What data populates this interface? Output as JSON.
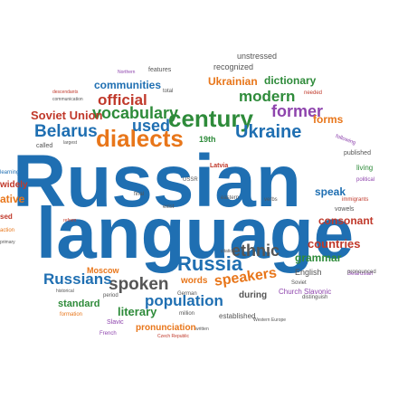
{
  "words": {
    "russian": "Russian",
    "language": "language",
    "century": "century",
    "dialects": "dialects",
    "vocabulary": "vocabulary",
    "ukraine": "Ukraine",
    "belarus": "Belarus",
    "used": "used",
    "official": "official",
    "modern": "modern",
    "former": "former",
    "forms": "forms",
    "dictionary": "dictionary",
    "ukrainian": "Ukrainian",
    "communities": "communities",
    "soviet_union": "Soviet Union",
    "russia": "Russia",
    "ethnic": "ethnic",
    "spoken": "spoken",
    "russians": "Russians",
    "speakers": "speakers",
    "population": "population",
    "literary": "literary",
    "countries": "countries",
    "grammar": "grammar",
    "speak": "speak",
    "consonant": "consonant",
    "standard": "standard",
    "pronunciation": "pronunciation",
    "moscow": "Moscow",
    "words": "words",
    "during": "during",
    "english": "English",
    "church_slavonic": "Church Slavonic",
    "established": "established",
    "unstressed": "unstressed",
    "recognized": "recognized",
    "features": "features",
    "19th": "19th",
    "vowels": "vowels",
    "published": "published",
    "living": "living",
    "native": "ative",
    "widely": "widely",
    "called": "called",
    "largest": "largest",
    "slavic": "Slavic",
    "formation": "formation",
    "million": "million",
    "german": "German",
    "period": "period",
    "french": "French",
    "descendants": "descendants",
    "following": "following",
    "immigrants": "immigrants",
    "latvia": "Latvia",
    "belarusian": "Belarusian",
    "soviet": "Soviet",
    "distinguish": "distinguish",
    "pronounced": "pronounced",
    "western_europe": "Western Europe",
    "citation": "citation",
    "total": "total",
    "northern": "Northern",
    "needed": "needed",
    "political": "political",
    "reform": "reform",
    "final": "final",
    "ussr": "USSR",
    "exist": "exist",
    "eastern": "eastern",
    "verbs": "verbs",
    "czech_republic": "Czech Republic",
    "learning": "learning",
    "historical": "historical",
    "primary": "primary",
    "action": "action",
    "communication": "communication",
    "lithuania": "Lithuania",
    "used_small": "used",
    "end": "end",
    "tone": "tone",
    "written": "written",
    "yet": "yet",
    "sed": "sed"
  }
}
